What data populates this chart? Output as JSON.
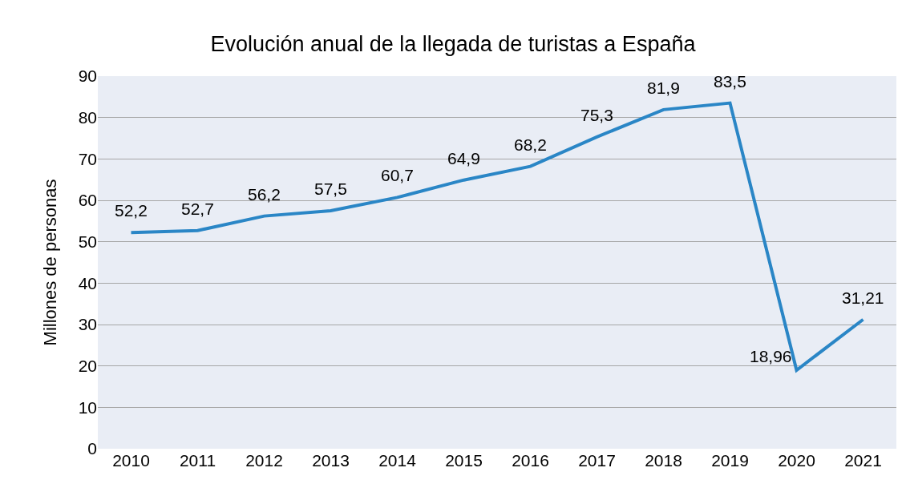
{
  "chart_data": {
    "type": "line",
    "title": "Evolución anual de la llegada de turistas a España",
    "ylabel": "Millones de personas",
    "categories": [
      "2010",
      "2011",
      "2012",
      "2013",
      "2014",
      "2015",
      "2016",
      "2017",
      "2018",
      "2019",
      "2020",
      "2021"
    ],
    "series": [
      {
        "color": "#2a86c6",
        "values": [
          52.2,
          52.7,
          56.2,
          57.5,
          60.7,
          64.9,
          68.2,
          75.3,
          81.9,
          83.5,
          18.96,
          31.21
        ],
        "value_labels": [
          "52,2",
          "52,7",
          "56,2",
          "57,5",
          "60,7",
          "64,9",
          "68,2",
          "75,3",
          "81,9",
          "83,5",
          "18,96",
          "31,21"
        ]
      }
    ],
    "ylim": [
      0,
      90
    ],
    "yticks": [
      0,
      10,
      20,
      30,
      40,
      50,
      60,
      70,
      80,
      90
    ],
    "grid": "y",
    "marker": "none",
    "line_style": "solid"
  }
}
